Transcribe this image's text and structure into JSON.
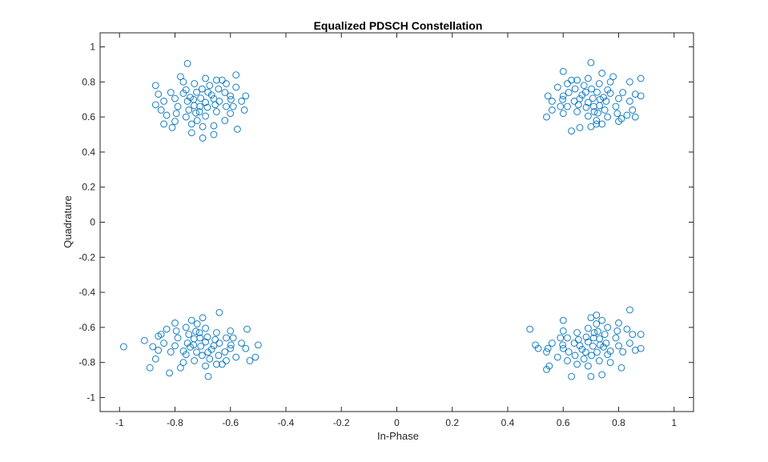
{
  "chart_data": {
    "type": "scatter",
    "title": "Equalized PDSCH Constellation",
    "xlabel": "In-Phase",
    "ylabel": "Quadrature",
    "xlim": [
      -1.07,
      1.07
    ],
    "ylim": [
      -1.08,
      1.08
    ],
    "xticks": [
      -1,
      -0.8,
      -0.6,
      -0.4,
      -0.2,
      0,
      0.2,
      0.4,
      0.6,
      0.8,
      1
    ],
    "yticks": [
      -1,
      -0.8,
      -0.6,
      -0.4,
      -0.2,
      0,
      0.2,
      0.4,
      0.6,
      0.8,
      1
    ],
    "xtick_labels": [
      "-1",
      "-0.8",
      "-0.6",
      "-0.4",
      "-0.2",
      "0",
      "0.2",
      "0.4",
      "0.6",
      "0.8",
      "1"
    ],
    "ytick_labels": [
      "-1",
      "-0.8",
      "-0.6",
      "-0.4",
      "-0.2",
      "0",
      "0.2",
      "0.4",
      "0.6",
      "0.8",
      "1"
    ],
    "grid": false,
    "box": true,
    "marker": "open-circle",
    "marker_color": "#0072BD",
    "axis_color": "#262626",
    "series": [
      {
        "points": [
          [
            -0.707,
            0.707
          ],
          [
            -0.745,
            0.712
          ],
          [
            -0.69,
            0.683
          ],
          [
            -0.722,
            0.741
          ],
          [
            -0.668,
            0.725
          ],
          [
            -0.731,
            0.665
          ],
          [
            -0.702,
            0.76
          ],
          [
            -0.755,
            0.69
          ],
          [
            -0.683,
            0.655
          ],
          [
            -0.66,
            0.704
          ],
          [
            -0.712,
            0.63
          ],
          [
            -0.77,
            0.735
          ],
          [
            -0.64,
            0.69
          ],
          [
            -0.73,
            0.79
          ],
          [
            -0.8,
            0.705
          ],
          [
            -0.675,
            0.78
          ],
          [
            -0.62,
            0.74
          ],
          [
            -0.75,
            0.64
          ],
          [
            -0.69,
            0.605
          ],
          [
            -0.79,
            0.66
          ],
          [
            -0.615,
            0.66
          ],
          [
            -0.65,
            0.63
          ],
          [
            -0.815,
            0.74
          ],
          [
            -0.72,
            0.58
          ],
          [
            -0.6,
            0.72
          ],
          [
            -0.84,
            0.69
          ],
          [
            -0.77,
            0.8
          ],
          [
            -0.65,
            0.81
          ],
          [
            -0.76,
            0.6
          ],
          [
            -0.59,
            0.66
          ],
          [
            -0.83,
            0.61
          ],
          [
            -0.58,
            0.77
          ],
          [
            -0.86,
            0.73
          ],
          [
            -0.7,
            0.545
          ],
          [
            -0.8,
            0.575
          ],
          [
            -0.6,
            0.62
          ],
          [
            -0.56,
            0.69
          ],
          [
            -0.87,
            0.78
          ],
          [
            -0.63,
            0.81
          ],
          [
            -0.78,
            0.83
          ],
          [
            -0.755,
            0.905
          ],
          [
            -0.66,
            0.5
          ],
          [
            -0.7,
            0.48
          ],
          [
            -0.74,
            0.51
          ],
          [
            -0.58,
            0.84
          ],
          [
            -0.55,
            0.64
          ],
          [
            -0.84,
            0.56
          ],
          [
            -0.66,
            0.55
          ],
          [
            -0.81,
            0.54
          ],
          [
            -0.575,
            0.53
          ],
          [
            -0.62,
            0.58
          ],
          [
            -0.87,
            0.67
          ],
          [
            -0.71,
            0.66
          ],
          [
            -0.733,
            0.7
          ],
          [
            -0.681,
            0.741
          ],
          [
            -0.725,
            0.623
          ],
          [
            -0.643,
            0.76
          ],
          [
            -0.76,
            0.755
          ],
          [
            -0.598,
            0.7
          ],
          [
            -0.795,
            0.62
          ],
          [
            -0.655,
            0.67
          ],
          [
            -0.74,
            0.56
          ],
          [
            -0.615,
            0.79
          ],
          [
            -0.85,
            0.64
          ],
          [
            -0.69,
            0.82
          ],
          [
            -0.545,
            0.72
          ]
        ]
      },
      {
        "points": [
          [
            0.707,
            0.707
          ],
          [
            0.745,
            0.712
          ],
          [
            0.69,
            0.683
          ],
          [
            0.722,
            0.741
          ],
          [
            0.668,
            0.725
          ],
          [
            0.731,
            0.665
          ],
          [
            0.702,
            0.76
          ],
          [
            0.755,
            0.69
          ],
          [
            0.683,
            0.655
          ],
          [
            0.66,
            0.704
          ],
          [
            0.712,
            0.63
          ],
          [
            0.77,
            0.735
          ],
          [
            0.64,
            0.69
          ],
          [
            0.73,
            0.79
          ],
          [
            0.8,
            0.705
          ],
          [
            0.675,
            0.78
          ],
          [
            0.62,
            0.74
          ],
          [
            0.75,
            0.64
          ],
          [
            0.69,
            0.605
          ],
          [
            0.79,
            0.66
          ],
          [
            0.615,
            0.66
          ],
          [
            0.65,
            0.63
          ],
          [
            0.815,
            0.74
          ],
          [
            0.72,
            0.58
          ],
          [
            0.6,
            0.72
          ],
          [
            0.84,
            0.69
          ],
          [
            0.77,
            0.8
          ],
          [
            0.65,
            0.81
          ],
          [
            0.76,
            0.6
          ],
          [
            0.59,
            0.66
          ],
          [
            0.83,
            0.61
          ],
          [
            0.58,
            0.77
          ],
          [
            0.86,
            0.73
          ],
          [
            0.7,
            0.545
          ],
          [
            0.8,
            0.575
          ],
          [
            0.6,
            0.62
          ],
          [
            0.56,
            0.69
          ],
          [
            0.88,
            0.82
          ],
          [
            0.63,
            0.81
          ],
          [
            0.78,
            0.83
          ],
          [
            0.7,
            0.91
          ],
          [
            0.66,
            0.54
          ],
          [
            0.63,
            0.52
          ],
          [
            0.72,
            0.56
          ],
          [
            0.6,
            0.86
          ],
          [
            0.54,
            0.6
          ],
          [
            0.86,
            0.6
          ],
          [
            0.56,
            0.64
          ],
          [
            0.81,
            0.59
          ],
          [
            0.74,
            0.85
          ],
          [
            0.84,
            0.8
          ],
          [
            0.88,
            0.72
          ],
          [
            0.71,
            0.66
          ],
          [
            0.733,
            0.7
          ],
          [
            0.681,
            0.741
          ],
          [
            0.725,
            0.623
          ],
          [
            0.643,
            0.76
          ],
          [
            0.76,
            0.755
          ],
          [
            0.598,
            0.7
          ],
          [
            0.795,
            0.62
          ],
          [
            0.655,
            0.67
          ],
          [
            0.74,
            0.56
          ],
          [
            0.615,
            0.79
          ],
          [
            0.85,
            0.64
          ],
          [
            0.69,
            0.82
          ],
          [
            0.545,
            0.72
          ]
        ]
      },
      {
        "points": [
          [
            -0.707,
            -0.707
          ],
          [
            -0.745,
            -0.712
          ],
          [
            -0.69,
            -0.683
          ],
          [
            -0.722,
            -0.741
          ],
          [
            -0.668,
            -0.725
          ],
          [
            -0.731,
            -0.665
          ],
          [
            -0.702,
            -0.76
          ],
          [
            -0.755,
            -0.69
          ],
          [
            -0.683,
            -0.655
          ],
          [
            -0.66,
            -0.704
          ],
          [
            -0.712,
            -0.63
          ],
          [
            -0.77,
            -0.735
          ],
          [
            -0.64,
            -0.69
          ],
          [
            -0.73,
            -0.79
          ],
          [
            -0.8,
            -0.705
          ],
          [
            -0.675,
            -0.78
          ],
          [
            -0.62,
            -0.74
          ],
          [
            -0.75,
            -0.64
          ],
          [
            -0.69,
            -0.605
          ],
          [
            -0.79,
            -0.66
          ],
          [
            -0.615,
            -0.66
          ],
          [
            -0.65,
            -0.63
          ],
          [
            -0.815,
            -0.74
          ],
          [
            -0.72,
            -0.58
          ],
          [
            -0.6,
            -0.72
          ],
          [
            -0.84,
            -0.69
          ],
          [
            -0.77,
            -0.8
          ],
          [
            -0.65,
            -0.81
          ],
          [
            -0.76,
            -0.6
          ],
          [
            -0.59,
            -0.66
          ],
          [
            -0.83,
            -0.61
          ],
          [
            -0.58,
            -0.77
          ],
          [
            -0.86,
            -0.73
          ],
          [
            -0.7,
            -0.545
          ],
          [
            -0.8,
            -0.575
          ],
          [
            -0.6,
            -0.62
          ],
          [
            -0.56,
            -0.69
          ],
          [
            -0.87,
            -0.78
          ],
          [
            -0.63,
            -0.81
          ],
          [
            -0.78,
            -0.83
          ],
          [
            -0.985,
            -0.71
          ],
          [
            -0.91,
            -0.675
          ],
          [
            -0.89,
            -0.83
          ],
          [
            -0.82,
            -0.86
          ],
          [
            -0.68,
            -0.88
          ],
          [
            -0.64,
            -0.515
          ],
          [
            -0.51,
            -0.77
          ],
          [
            -0.5,
            -0.7
          ],
          [
            -0.53,
            -0.79
          ],
          [
            -0.54,
            -0.61
          ],
          [
            -0.86,
            -0.65
          ],
          [
            -0.88,
            -0.71
          ],
          [
            -0.71,
            -0.66
          ],
          [
            -0.733,
            -0.7
          ],
          [
            -0.681,
            -0.741
          ],
          [
            -0.725,
            -0.623
          ],
          [
            -0.643,
            -0.76
          ],
          [
            -0.76,
            -0.755
          ],
          [
            -0.598,
            -0.7
          ],
          [
            -0.795,
            -0.62
          ],
          [
            -0.655,
            -0.67
          ],
          [
            -0.74,
            -0.56
          ],
          [
            -0.615,
            -0.79
          ],
          [
            -0.85,
            -0.64
          ],
          [
            -0.69,
            -0.82
          ],
          [
            -0.545,
            -0.72
          ]
        ]
      },
      {
        "points": [
          [
            0.707,
            -0.707
          ],
          [
            0.745,
            -0.712
          ],
          [
            0.69,
            -0.683
          ],
          [
            0.722,
            -0.741
          ],
          [
            0.668,
            -0.725
          ],
          [
            0.731,
            -0.665
          ],
          [
            0.702,
            -0.76
          ],
          [
            0.755,
            -0.69
          ],
          [
            0.683,
            -0.655
          ],
          [
            0.66,
            -0.704
          ],
          [
            0.712,
            -0.63
          ],
          [
            0.77,
            -0.735
          ],
          [
            0.64,
            -0.69
          ],
          [
            0.73,
            -0.79
          ],
          [
            0.8,
            -0.705
          ],
          [
            0.675,
            -0.78
          ],
          [
            0.62,
            -0.74
          ],
          [
            0.75,
            -0.64
          ],
          [
            0.69,
            -0.605
          ],
          [
            0.79,
            -0.66
          ],
          [
            0.615,
            -0.66
          ],
          [
            0.65,
            -0.63
          ],
          [
            0.815,
            -0.74
          ],
          [
            0.72,
            -0.58
          ],
          [
            0.6,
            -0.72
          ],
          [
            0.84,
            -0.69
          ],
          [
            0.77,
            -0.8
          ],
          [
            0.65,
            -0.81
          ],
          [
            0.76,
            -0.6
          ],
          [
            0.59,
            -0.66
          ],
          [
            0.83,
            -0.61
          ],
          [
            0.58,
            -0.77
          ],
          [
            0.86,
            -0.73
          ],
          [
            0.7,
            -0.545
          ],
          [
            0.8,
            -0.575
          ],
          [
            0.6,
            -0.62
          ],
          [
            0.56,
            -0.69
          ],
          [
            0.88,
            -0.64
          ],
          [
            0.48,
            -0.61
          ],
          [
            0.5,
            -0.7
          ],
          [
            0.51,
            -0.72
          ],
          [
            0.54,
            -0.84
          ],
          [
            0.84,
            -0.5
          ],
          [
            0.63,
            -0.88
          ],
          [
            0.7,
            -0.88
          ],
          [
            0.74,
            -0.87
          ],
          [
            0.55,
            -0.82
          ],
          [
            0.88,
            -0.72
          ],
          [
            0.54,
            -0.74
          ],
          [
            0.6,
            -0.56
          ],
          [
            0.81,
            -0.83
          ],
          [
            0.72,
            -0.53
          ],
          [
            0.71,
            -0.66
          ],
          [
            0.733,
            -0.7
          ],
          [
            0.681,
            -0.741
          ],
          [
            0.725,
            -0.623
          ],
          [
            0.643,
            -0.76
          ],
          [
            0.76,
            -0.755
          ],
          [
            0.598,
            -0.7
          ],
          [
            0.795,
            -0.62
          ],
          [
            0.655,
            -0.67
          ],
          [
            0.74,
            -0.56
          ],
          [
            0.615,
            -0.79
          ],
          [
            0.85,
            -0.64
          ],
          [
            0.69,
            -0.82
          ],
          [
            0.545,
            -0.72
          ]
        ]
      }
    ]
  }
}
